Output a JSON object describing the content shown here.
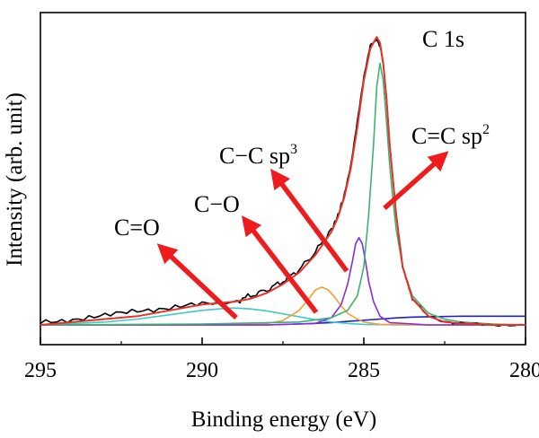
{
  "chart_data": {
    "type": "line",
    "title": "",
    "xlabel": "Binding energy (eV)",
    "ylabel": "Intensity (arb. unit)",
    "xlim": [
      295,
      280
    ],
    "x_ticks": [
      "295",
      "290",
      "285",
      "280"
    ],
    "y_ticks": [],
    "grid": false,
    "legend": "none",
    "region_label": "C 1s",
    "series": [
      {
        "key": "raw",
        "color": "#000000",
        "x": [
          295,
          294,
          293,
          292,
          291,
          290,
          289,
          288.5,
          288,
          287.5,
          287,
          286.5,
          286,
          285.8,
          285.6,
          285.4,
          285.2,
          285,
          284.8,
          284.6,
          284.5,
          284.4,
          284.3,
          284.2,
          284,
          283.8,
          283.5,
          283,
          282.5,
          282,
          281,
          280
        ],
        "y": [
          0.01,
          0.02,
          0.03,
          0.05,
          0.06,
          0.07,
          0.08,
          0.1,
          0.12,
          0.15,
          0.19,
          0.25,
          0.33,
          0.38,
          0.45,
          0.55,
          0.7,
          0.85,
          0.96,
          0.98,
          0.96,
          0.9,
          0.78,
          0.62,
          0.38,
          0.2,
          0.09,
          0.03,
          0.01,
          0.005,
          0.0,
          0.0
        ]
      },
      {
        "key": "envelope",
        "color": "#e8322a",
        "x": [
          295,
          294,
          293,
          292,
          291,
          290,
          289,
          288.5,
          288,
          287.5,
          287,
          286.5,
          286,
          285.8,
          285.6,
          285.4,
          285.2,
          285,
          284.8,
          284.6,
          284.5,
          284.4,
          284.3,
          284.2,
          284,
          283.8,
          283.5,
          283,
          282.5,
          282,
          281,
          280
        ],
        "y": [
          0.0,
          0.01,
          0.02,
          0.03,
          0.05,
          0.07,
          0.08,
          0.09,
          0.11,
          0.14,
          0.18,
          0.24,
          0.32,
          0.37,
          0.44,
          0.54,
          0.68,
          0.84,
          0.95,
          0.99,
          0.97,
          0.9,
          0.78,
          0.62,
          0.38,
          0.2,
          0.09,
          0.03,
          0.01,
          0.005,
          0.0,
          0.0
        ]
      },
      {
        "key": "c_o_double",
        "label": "C=O",
        "color": "#3fc9c9",
        "x": [
          295,
          294,
          293,
          292,
          291,
          290,
          289.5,
          289,
          288.5,
          288,
          287.5,
          287,
          286.5,
          286,
          285.5,
          285,
          284,
          283,
          280
        ],
        "y": [
          0.0,
          0.005,
          0.01,
          0.02,
          0.035,
          0.05,
          0.055,
          0.058,
          0.055,
          0.048,
          0.038,
          0.028,
          0.018,
          0.01,
          0.005,
          0.002,
          0.0,
          0.0,
          0.0
        ]
      },
      {
        "key": "c_o",
        "label": "C−O",
        "color": "#f0a030",
        "x": [
          295,
          290,
          288,
          287.5,
          287,
          286.7,
          286.5,
          286.3,
          286.1,
          285.9,
          285.7,
          285.5,
          285.2,
          285,
          284.5,
          283,
          280
        ],
        "y": [
          0.0,
          0.0,
          0.005,
          0.015,
          0.05,
          0.09,
          0.12,
          0.13,
          0.12,
          0.095,
          0.065,
          0.04,
          0.02,
          0.01,
          0.002,
          0.0,
          0.0
        ]
      },
      {
        "key": "c_c_sp3",
        "label": "C−C sp3",
        "color": "#8a2be2",
        "x": [
          295,
          288,
          286.5,
          286,
          285.7,
          285.5,
          285.35,
          285.25,
          285.15,
          285.05,
          284.95,
          284.85,
          284.7,
          284.5,
          284.2,
          283,
          280
        ],
        "y": [
          0.0,
          0.0,
          0.005,
          0.025,
          0.07,
          0.14,
          0.22,
          0.28,
          0.3,
          0.28,
          0.22,
          0.15,
          0.08,
          0.03,
          0.008,
          0.0,
          0.0
        ]
      },
      {
        "key": "c_c_sp2",
        "label": "C=C sp2",
        "color": "#3cb371",
        "x": [
          295,
          290,
          287,
          286,
          285.5,
          285.2,
          285,
          284.85,
          284.7,
          284.6,
          284.5,
          284.4,
          284.3,
          284.2,
          284.1,
          284,
          283.8,
          283.5,
          283,
          282.5,
          282,
          281,
          280
        ],
        "y": [
          0.0,
          0.003,
          0.01,
          0.025,
          0.05,
          0.1,
          0.2,
          0.38,
          0.62,
          0.82,
          0.9,
          0.84,
          0.7,
          0.55,
          0.43,
          0.33,
          0.2,
          0.1,
          0.04,
          0.02,
          0.01,
          0.003,
          0.0
        ]
      },
      {
        "key": "baseline",
        "color": "#1f1fd0",
        "x": [
          295,
          290,
          288,
          287,
          286,
          285.5,
          285,
          284.5,
          284,
          283.5,
          283,
          282,
          281,
          280
        ],
        "y": [
          0.0,
          0.0,
          0.0,
          0.003,
          0.008,
          0.012,
          0.016,
          0.02,
          0.024,
          0.027,
          0.028,
          0.03,
          0.03,
          0.03
        ]
      }
    ],
    "annotations": [
      {
        "key": "c_o_double",
        "text": "C=O",
        "sup": ""
      },
      {
        "key": "c_o",
        "text": "C−O",
        "sup": ""
      },
      {
        "key": "c_c_sp3",
        "text": "C−C sp",
        "sup": "3"
      },
      {
        "key": "c_c_sp2",
        "text": "C=C sp",
        "sup": "2"
      }
    ],
    "arrow_color": "#ee1c1c"
  }
}
